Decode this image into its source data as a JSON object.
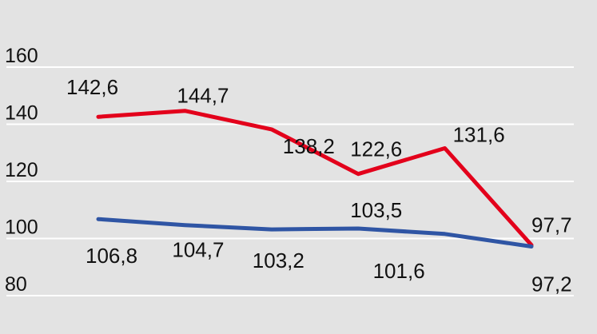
{
  "chart_data": {
    "type": "line",
    "title": "",
    "xlabel": "",
    "ylabel": "",
    "ylim": [
      80,
      160
    ],
    "yticks": [
      80,
      100,
      120,
      140,
      160
    ],
    "ytick_labels": [
      "80",
      "100",
      "120",
      "140",
      "160"
    ],
    "grid": true,
    "legend": "none",
    "x_count": 6,
    "series": [
      {
        "color": "#e3001b",
        "values": [
          142.6,
          144.7,
          138.2,
          122.6,
          131.6,
          97.7
        ],
        "labels": [
          "142,6",
          "144,7",
          "138,2",
          "122,6",
          "131,6",
          "97,7"
        ]
      },
      {
        "color": "#2f55a4",
        "values": [
          106.8,
          104.7,
          103.2,
          103.5,
          101.6,
          97.2
        ],
        "labels": [
          "106,8",
          "104,7",
          "103,2",
          "103,5",
          "101,6",
          "97,2"
        ]
      }
    ],
    "background": "#e3e3e3",
    "gridline_color": "#ffffff",
    "text_color": "#111111"
  }
}
